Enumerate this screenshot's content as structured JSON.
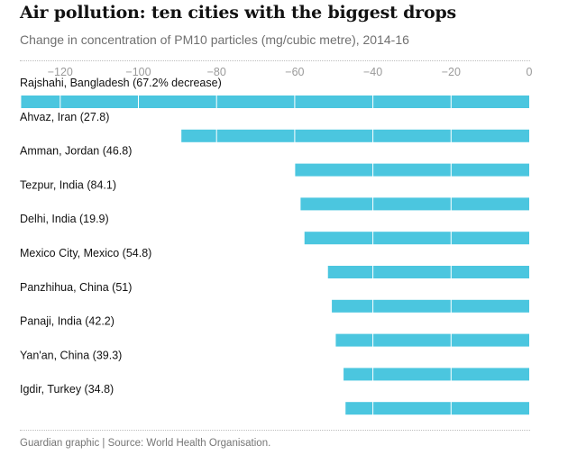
{
  "title": "Air pollution: ten cities with the biggest drops",
  "subtitle": "Change in concentration of PM10 particles (mg/cubic metre), 2014-16",
  "source": "Guardian graphic | Source: World Health Organisation.",
  "colors": {
    "bar": "#4bc6df",
    "grid": "#ffffff",
    "text": "#121212",
    "muted": "#9a9a9a"
  },
  "chart_data": {
    "type": "bar",
    "orientation": "horizontal",
    "title": "Air pollution: ten cities with the biggest drops",
    "subtitle": "Change in concentration of PM10 particles (mg/cubic metre), 2014-16",
    "xlabel": "",
    "ylabel": "",
    "xlim": [
      -130,
      0
    ],
    "xticks": [
      -120,
      -100,
      -80,
      -60,
      -40,
      -20,
      0
    ],
    "xtick_labels": [
      "−120",
      "−100",
      "−80",
      "−60",
      "−40",
      "−20",
      "0"
    ],
    "categories": [
      "Rajshahi, Bangladesh (67.2% decrease)",
      "Ahvaz, Iran (27.8)",
      "Amman, Jordan (46.8)",
      "Tezpur, India (84.1)",
      "Delhi, India (19.9)",
      "Mexico City, Mexico (54.8)",
      "Panzhihua, China (51)",
      "Panaji, India (42.2)",
      "Yan'an, China (39.3)",
      "Igdir, Turkey (34.8)"
    ],
    "values": [
      -130,
      -89,
      -60,
      -58.5,
      -57.5,
      -51.5,
      -50.5,
      -49.5,
      -47.5,
      -47
    ],
    "grid": true,
    "legend": "none"
  }
}
